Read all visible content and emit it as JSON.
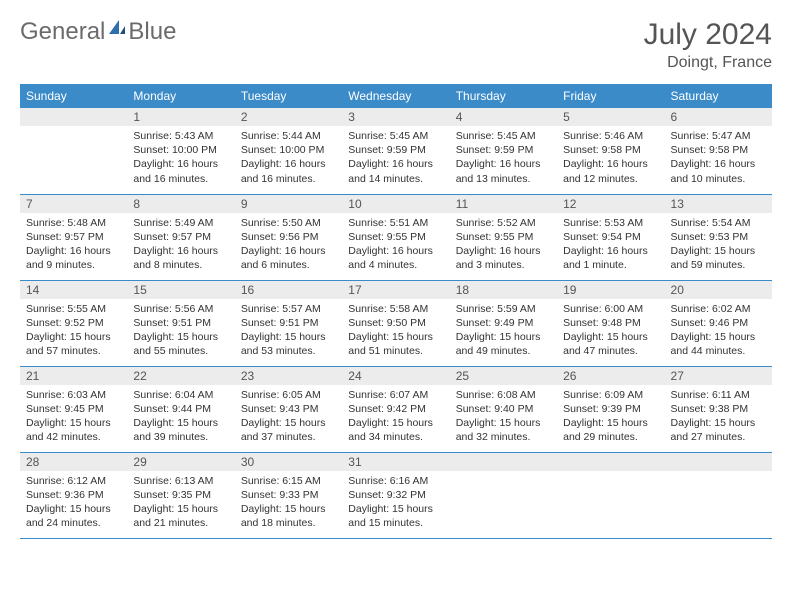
{
  "logo": {
    "text1": "General",
    "text2": "Blue"
  },
  "title": "July 2024",
  "location": "Doingt, France",
  "colors": {
    "header_bg": "#3b8bc9",
    "header_fg": "#ffffff",
    "daynum_bg": "#ececec",
    "border": "#3b8bc9",
    "logo_gray": "#6b6b6b",
    "logo_blue": "#2f6fae"
  },
  "weekdays": [
    "Sunday",
    "Monday",
    "Tuesday",
    "Wednesday",
    "Thursday",
    "Friday",
    "Saturday"
  ],
  "weeks": [
    [
      {
        "n": "",
        "lines": []
      },
      {
        "n": "1",
        "lines": [
          "Sunrise: 5:43 AM",
          "Sunset: 10:00 PM",
          "Daylight: 16 hours and 16 minutes."
        ]
      },
      {
        "n": "2",
        "lines": [
          "Sunrise: 5:44 AM",
          "Sunset: 10:00 PM",
          "Daylight: 16 hours and 16 minutes."
        ]
      },
      {
        "n": "3",
        "lines": [
          "Sunrise: 5:45 AM",
          "Sunset: 9:59 PM",
          "Daylight: 16 hours and 14 minutes."
        ]
      },
      {
        "n": "4",
        "lines": [
          "Sunrise: 5:45 AM",
          "Sunset: 9:59 PM",
          "Daylight: 16 hours and 13 minutes."
        ]
      },
      {
        "n": "5",
        "lines": [
          "Sunrise: 5:46 AM",
          "Sunset: 9:58 PM",
          "Daylight: 16 hours and 12 minutes."
        ]
      },
      {
        "n": "6",
        "lines": [
          "Sunrise: 5:47 AM",
          "Sunset: 9:58 PM",
          "Daylight: 16 hours and 10 minutes."
        ]
      }
    ],
    [
      {
        "n": "7",
        "lines": [
          "Sunrise: 5:48 AM",
          "Sunset: 9:57 PM",
          "Daylight: 16 hours and 9 minutes."
        ]
      },
      {
        "n": "8",
        "lines": [
          "Sunrise: 5:49 AM",
          "Sunset: 9:57 PM",
          "Daylight: 16 hours and 8 minutes."
        ]
      },
      {
        "n": "9",
        "lines": [
          "Sunrise: 5:50 AM",
          "Sunset: 9:56 PM",
          "Daylight: 16 hours and 6 minutes."
        ]
      },
      {
        "n": "10",
        "lines": [
          "Sunrise: 5:51 AM",
          "Sunset: 9:55 PM",
          "Daylight: 16 hours and 4 minutes."
        ]
      },
      {
        "n": "11",
        "lines": [
          "Sunrise: 5:52 AM",
          "Sunset: 9:55 PM",
          "Daylight: 16 hours and 3 minutes."
        ]
      },
      {
        "n": "12",
        "lines": [
          "Sunrise: 5:53 AM",
          "Sunset: 9:54 PM",
          "Daylight: 16 hours and 1 minute."
        ]
      },
      {
        "n": "13",
        "lines": [
          "Sunrise: 5:54 AM",
          "Sunset: 9:53 PM",
          "Daylight: 15 hours and 59 minutes."
        ]
      }
    ],
    [
      {
        "n": "14",
        "lines": [
          "Sunrise: 5:55 AM",
          "Sunset: 9:52 PM",
          "Daylight: 15 hours and 57 minutes."
        ]
      },
      {
        "n": "15",
        "lines": [
          "Sunrise: 5:56 AM",
          "Sunset: 9:51 PM",
          "Daylight: 15 hours and 55 minutes."
        ]
      },
      {
        "n": "16",
        "lines": [
          "Sunrise: 5:57 AM",
          "Sunset: 9:51 PM",
          "Daylight: 15 hours and 53 minutes."
        ]
      },
      {
        "n": "17",
        "lines": [
          "Sunrise: 5:58 AM",
          "Sunset: 9:50 PM",
          "Daylight: 15 hours and 51 minutes."
        ]
      },
      {
        "n": "18",
        "lines": [
          "Sunrise: 5:59 AM",
          "Sunset: 9:49 PM",
          "Daylight: 15 hours and 49 minutes."
        ]
      },
      {
        "n": "19",
        "lines": [
          "Sunrise: 6:00 AM",
          "Sunset: 9:48 PM",
          "Daylight: 15 hours and 47 minutes."
        ]
      },
      {
        "n": "20",
        "lines": [
          "Sunrise: 6:02 AM",
          "Sunset: 9:46 PM",
          "Daylight: 15 hours and 44 minutes."
        ]
      }
    ],
    [
      {
        "n": "21",
        "lines": [
          "Sunrise: 6:03 AM",
          "Sunset: 9:45 PM",
          "Daylight: 15 hours and 42 minutes."
        ]
      },
      {
        "n": "22",
        "lines": [
          "Sunrise: 6:04 AM",
          "Sunset: 9:44 PM",
          "Daylight: 15 hours and 39 minutes."
        ]
      },
      {
        "n": "23",
        "lines": [
          "Sunrise: 6:05 AM",
          "Sunset: 9:43 PM",
          "Daylight: 15 hours and 37 minutes."
        ]
      },
      {
        "n": "24",
        "lines": [
          "Sunrise: 6:07 AM",
          "Sunset: 9:42 PM",
          "Daylight: 15 hours and 34 minutes."
        ]
      },
      {
        "n": "25",
        "lines": [
          "Sunrise: 6:08 AM",
          "Sunset: 9:40 PM",
          "Daylight: 15 hours and 32 minutes."
        ]
      },
      {
        "n": "26",
        "lines": [
          "Sunrise: 6:09 AM",
          "Sunset: 9:39 PM",
          "Daylight: 15 hours and 29 minutes."
        ]
      },
      {
        "n": "27",
        "lines": [
          "Sunrise: 6:11 AM",
          "Sunset: 9:38 PM",
          "Daylight: 15 hours and 27 minutes."
        ]
      }
    ],
    [
      {
        "n": "28",
        "lines": [
          "Sunrise: 6:12 AM",
          "Sunset: 9:36 PM",
          "Daylight: 15 hours and 24 minutes."
        ]
      },
      {
        "n": "29",
        "lines": [
          "Sunrise: 6:13 AM",
          "Sunset: 9:35 PM",
          "Daylight: 15 hours and 21 minutes."
        ]
      },
      {
        "n": "30",
        "lines": [
          "Sunrise: 6:15 AM",
          "Sunset: 9:33 PM",
          "Daylight: 15 hours and 18 minutes."
        ]
      },
      {
        "n": "31",
        "lines": [
          "Sunrise: 6:16 AM",
          "Sunset: 9:32 PM",
          "Daylight: 15 hours and 15 minutes."
        ]
      },
      {
        "n": "",
        "lines": []
      },
      {
        "n": "",
        "lines": []
      },
      {
        "n": "",
        "lines": []
      }
    ]
  ]
}
